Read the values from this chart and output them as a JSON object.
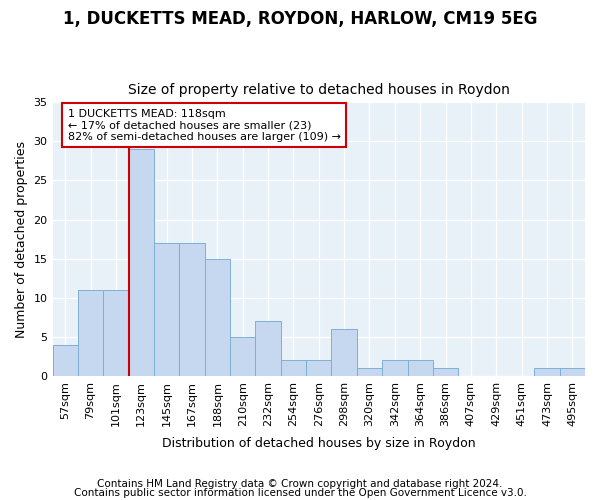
{
  "title1": "1, DUCKETTS MEAD, ROYDON, HARLOW, CM19 5EG",
  "title2": "Size of property relative to detached houses in Roydon",
  "xlabel": "Distribution of detached houses by size in Roydon",
  "ylabel": "Number of detached properties",
  "footer1": "Contains HM Land Registry data © Crown copyright and database right 2024.",
  "footer2": "Contains public sector information licensed under the Open Government Licence v3.0.",
  "categories": [
    "57sqm",
    "79sqm",
    "101sqm",
    "123sqm",
    "145sqm",
    "167sqm",
    "188sqm",
    "210sqm",
    "232sqm",
    "254sqm",
    "276sqm",
    "298sqm",
    "320sqm",
    "342sqm",
    "364sqm",
    "386sqm",
    "407sqm",
    "429sqm",
    "451sqm",
    "473sqm",
    "495sqm"
  ],
  "values": [
    4,
    11,
    11,
    29,
    17,
    17,
    15,
    5,
    7,
    2,
    2,
    6,
    1,
    2,
    2,
    1,
    0,
    0,
    0,
    1,
    1
  ],
  "bar_color": "#c5d8f0",
  "bar_edge_color": "#7eafd4",
  "vline_color": "#cc0000",
  "vline_x_index": 3,
  "annotation_line0": "1 DUCKETTS MEAD: 118sqm",
  "annotation_line1": "← 17% of detached houses are smaller (23)",
  "annotation_line2": "82% of semi-detached houses are larger (109) →",
  "annotation_box_facecolor": "#ffffff",
  "annotation_box_edgecolor": "#cc0000",
  "ylim": [
    0,
    35
  ],
  "yticks": [
    0,
    5,
    10,
    15,
    20,
    25,
    30,
    35
  ],
  "fig_facecolor": "#ffffff",
  "ax_facecolor": "#e8f0f8",
  "grid_color": "#ffffff",
  "title1_fontsize": 12,
  "title2_fontsize": 10,
  "xlabel_fontsize": 9,
  "ylabel_fontsize": 9,
  "tick_fontsize": 8,
  "footer_fontsize": 7.5
}
